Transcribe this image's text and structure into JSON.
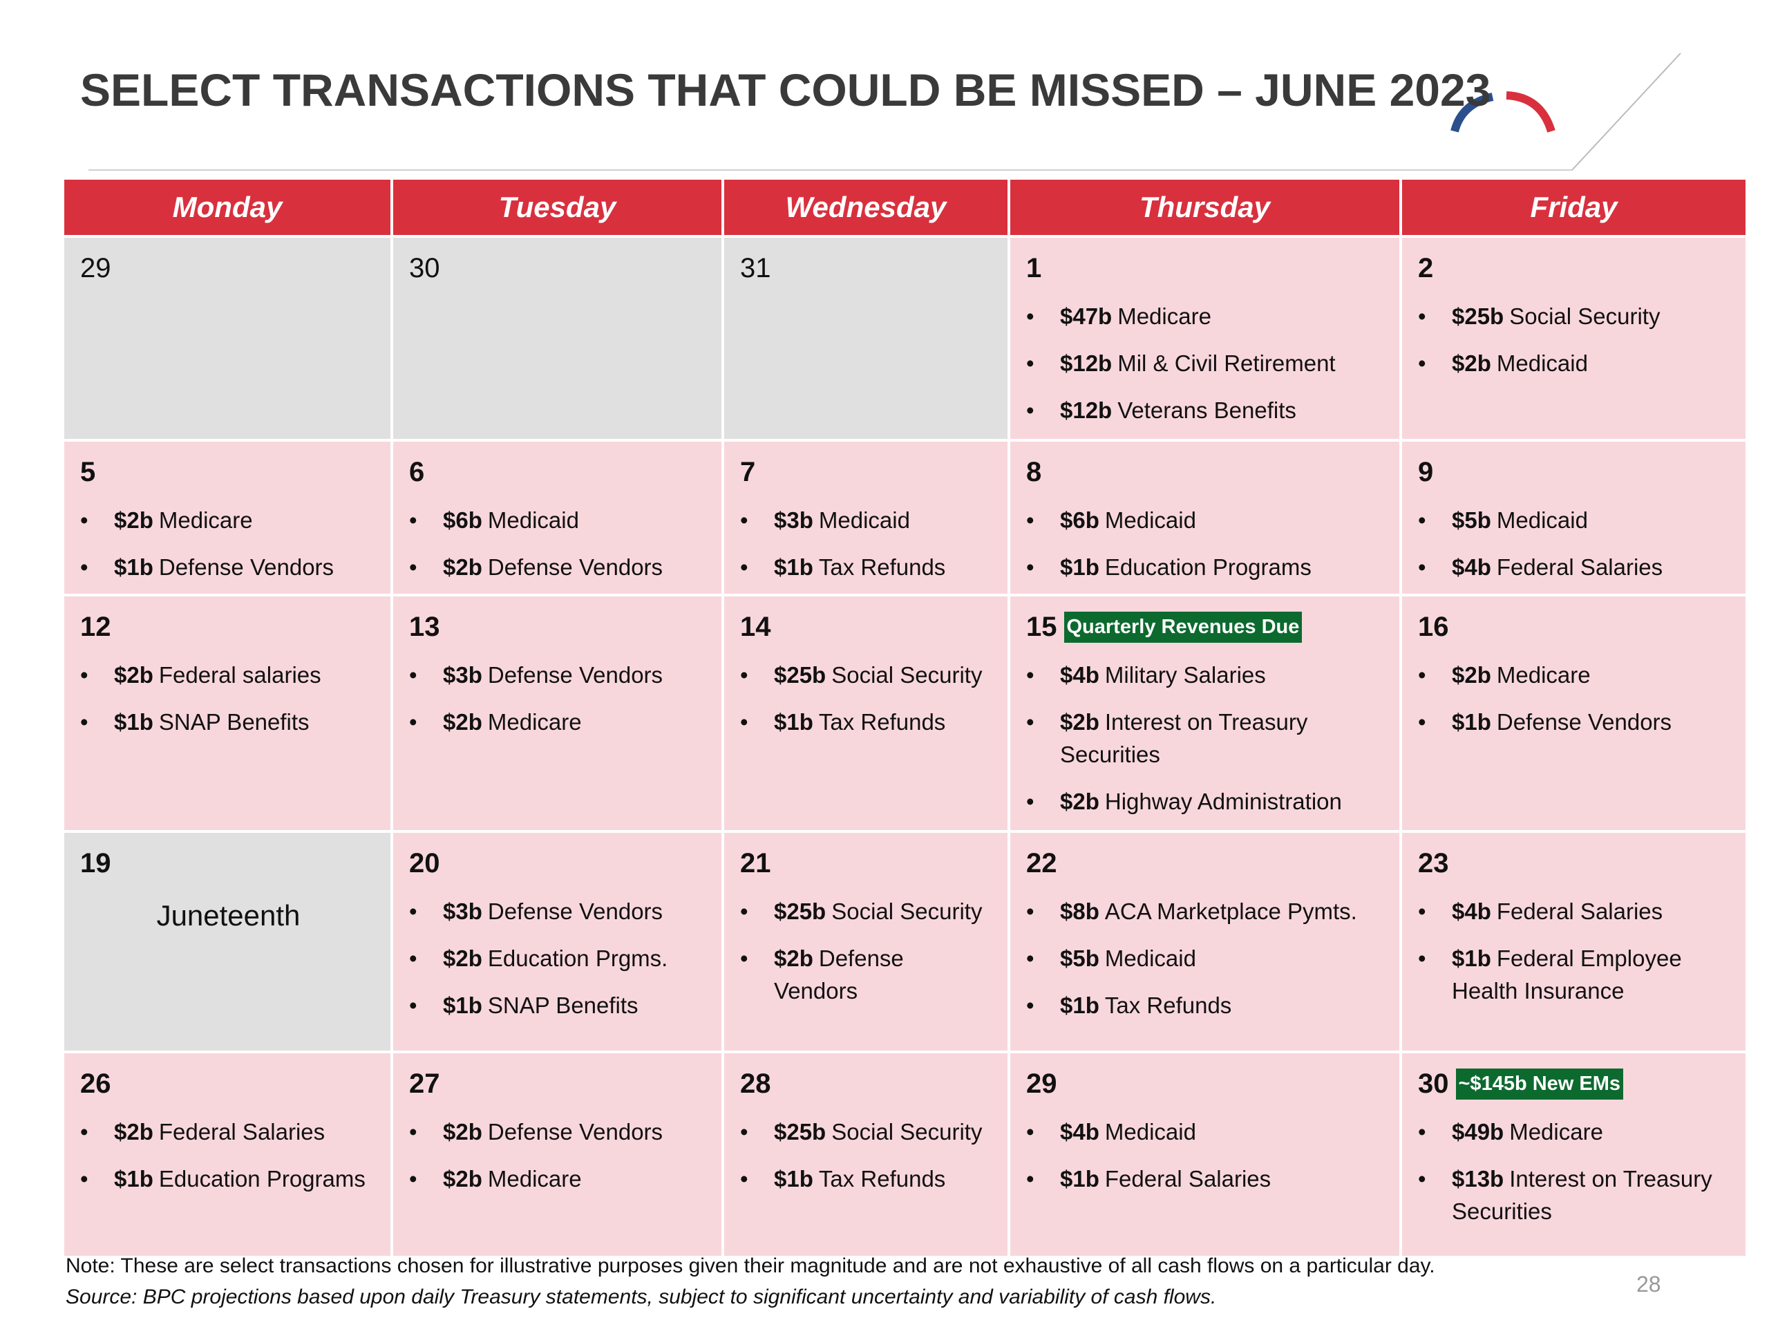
{
  "title": "SELECT TRANSACTIONS THAT COULD BE MISSED – JUNE 2023",
  "weekdays": [
    "Monday",
    "Tuesday",
    "Wednesday",
    "Thursday",
    "Friday"
  ],
  "weeks": [
    [
      {
        "day": "29",
        "items": []
      },
      {
        "day": "30",
        "items": []
      },
      {
        "day": "31",
        "items": []
      },
      {
        "day": "1",
        "items": [
          {
            "amount": "$47b",
            "text": "Medicare"
          },
          {
            "amount": "$12b",
            "text": "Mil & Civil Retirement"
          },
          {
            "amount": "$12b",
            "text": "Veterans Benefits"
          }
        ]
      },
      {
        "day": "2",
        "items": [
          {
            "amount": "$25b",
            "text": "Social Security"
          },
          {
            "amount": "$2b",
            "text": "Medicaid"
          }
        ]
      }
    ],
    [
      {
        "day": "5",
        "items": [
          {
            "amount": "$2b",
            "text": "Medicare"
          },
          {
            "amount": "$1b",
            "text": "Defense Vendors"
          }
        ]
      },
      {
        "day": "6",
        "items": [
          {
            "amount": "$6b",
            "text": "Medicaid"
          },
          {
            "amount": "$2b",
            "text": "Defense Vendors"
          }
        ]
      },
      {
        "day": "7",
        "items": [
          {
            "amount": "$3b",
            "text": "Medicaid"
          },
          {
            "amount": "$1b",
            "text": "Tax Refunds"
          }
        ]
      },
      {
        "day": "8",
        "items": [
          {
            "amount": "$6b",
            "text": "Medicaid"
          },
          {
            "amount": "$1b",
            "text": "Education Programs"
          }
        ]
      },
      {
        "day": "9",
        "items": [
          {
            "amount": "$5b",
            "text": "Medicaid"
          },
          {
            "amount": "$4b",
            "text": "Federal Salaries"
          }
        ]
      }
    ],
    [
      {
        "day": "12",
        "items": [
          {
            "amount": "$2b",
            "text": "Federal salaries"
          },
          {
            "amount": "$1b",
            "text": "SNAP Benefits"
          }
        ]
      },
      {
        "day": "13",
        "items": [
          {
            "amount": "$3b",
            "text": "Defense Vendors"
          },
          {
            "amount": "$2b",
            "text": "Medicare"
          }
        ]
      },
      {
        "day": "14",
        "items": [
          {
            "amount": "$25b",
            "text": "Social Security"
          },
          {
            "amount": "$1b",
            "text": "Tax Refunds"
          }
        ]
      },
      {
        "day": "15",
        "badge": "Quarterly Revenues Due",
        "items": [
          {
            "amount": "$4b",
            "text": "Military Salaries"
          },
          {
            "amount": "$2b",
            "text": "Interest on Treasury Securities"
          },
          {
            "amount": "$2b",
            "text": "Highway Administration"
          }
        ]
      },
      {
        "day": "16",
        "items": [
          {
            "amount": "$2b",
            "text": "Medicare"
          },
          {
            "amount": "$1b",
            "text": "Defense Vendors"
          }
        ]
      }
    ],
    [
      {
        "day": "19",
        "holiday": "Juneteenth",
        "items": []
      },
      {
        "day": "20",
        "items": [
          {
            "amount": "$3b",
            "text": "Defense Vendors"
          },
          {
            "amount": "$2b",
            "text": "Education Prgms."
          },
          {
            "amount": "$1b",
            "text": "SNAP Benefits"
          }
        ]
      },
      {
        "day": "21",
        "items": [
          {
            "amount": "$25b",
            "text": "Social Security"
          },
          {
            "amount": "$2b",
            "text": "Defense Vendors"
          }
        ]
      },
      {
        "day": "22",
        "items": [
          {
            "amount": "$8b",
            "text": "ACA Marketplace Pymts."
          },
          {
            "amount": "$5b",
            "text": "Medicaid"
          },
          {
            "amount": "$1b",
            "text": "Tax Refunds"
          }
        ]
      },
      {
        "day": "23",
        "items": [
          {
            "amount": "$4b",
            "text": "Federal Salaries"
          },
          {
            "amount": "$1b",
            "text": "Federal Employee Health Insurance"
          }
        ]
      }
    ],
    [
      {
        "day": "26",
        "items": [
          {
            "amount": "$2b",
            "text": "Federal Salaries"
          },
          {
            "amount": "$1b",
            "text": "Education Programs"
          }
        ]
      },
      {
        "day": "27",
        "items": [
          {
            "amount": "$2b",
            "text": "Defense Vendors"
          },
          {
            "amount": "$2b",
            "text": "Medicare"
          }
        ]
      },
      {
        "day": "28",
        "items": [
          {
            "amount": "$25b",
            "text": "Social Security"
          },
          {
            "amount": "$1b",
            "text": "Tax Refunds"
          }
        ]
      },
      {
        "day": "29",
        "items": [
          {
            "amount": "$4b",
            "text": "Medicaid"
          },
          {
            "amount": "$1b",
            "text": "Federal Salaries"
          }
        ]
      },
      {
        "day": "30",
        "badge": "~$145b New EMs",
        "items": [
          {
            "amount": "$49b",
            "text": "Medicare"
          },
          {
            "amount": "$13b",
            "text": "Interest on Treasury Securities"
          }
        ]
      }
    ]
  ],
  "note": "Note: These are select transactions chosen for illustrative purposes given their magnitude and are not exhaustive of all cash flows on a particular day.",
  "source": "Source: BPC projections based upon daily Treasury statements, subject to significant uncertainty and variability of cash flows.",
  "page_number": "28"
}
